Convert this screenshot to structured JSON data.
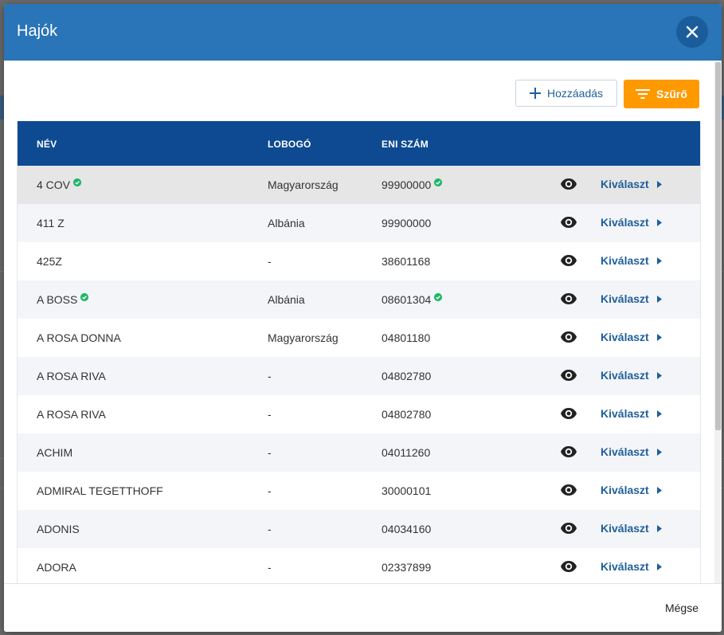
{
  "dialog": {
    "title": "Hajók",
    "close_icon": "close-icon"
  },
  "toolbar": {
    "add_label": "Hozzáadás",
    "add_icon": "plus-icon",
    "filter_label": "Szűrő",
    "filter_icon": "filter-icon",
    "filter_color": "#ff9900"
  },
  "table": {
    "header_color": "#0e4a91",
    "columns": [
      "NÉV",
      "LOBOGÓ",
      "ENI SZÁM"
    ],
    "rows": [
      {
        "name": "4 COV",
        "name_verified": true,
        "flag": "Magyarország",
        "eni": "99900000",
        "eni_verified": true,
        "action": "Kiválaszt",
        "selected": true
      },
      {
        "name": "411 Z",
        "name_verified": false,
        "flag": "Albánia",
        "eni": "99900000",
        "eni_verified": false,
        "action": "Kiválaszt"
      },
      {
        "name": "425Z",
        "name_verified": false,
        "flag": "-",
        "eni": "38601168",
        "eni_verified": false,
        "action": "Kiválaszt"
      },
      {
        "name": "A BOSS",
        "name_verified": true,
        "flag": "Albánia",
        "eni": "08601304",
        "eni_verified": true,
        "action": "Kiválaszt"
      },
      {
        "name": "A ROSA DONNA",
        "name_verified": false,
        "flag": "Magyarország",
        "eni": "04801180",
        "eni_verified": false,
        "action": "Kiválaszt"
      },
      {
        "name": "A ROSA RIVA",
        "name_verified": false,
        "flag": "-",
        "eni": "04802780",
        "eni_verified": false,
        "action": "Kiválaszt"
      },
      {
        "name": "A ROSA RIVA",
        "name_verified": false,
        "flag": "-",
        "eni": "04802780",
        "eni_verified": false,
        "action": "Kiválaszt"
      },
      {
        "name": "ACHIM",
        "name_verified": false,
        "flag": "-",
        "eni": "04011260",
        "eni_verified": false,
        "action": "Kiválaszt"
      },
      {
        "name": "ADMIRAL TEGETTHOFF",
        "name_verified": false,
        "flag": "-",
        "eni": "30000101",
        "eni_verified": false,
        "action": "Kiválaszt"
      },
      {
        "name": "ADONIS",
        "name_verified": false,
        "flag": "-",
        "eni": "04034160",
        "eni_verified": false,
        "action": "Kiválaszt"
      },
      {
        "name": "ADORA",
        "name_verified": false,
        "flag": "-",
        "eni": "02337899",
        "eni_verified": false,
        "action": "Kiválaszt"
      }
    ],
    "view_icon": "eye-icon",
    "select_icon": "caret-right-icon",
    "verified_icon": "check-circle-icon",
    "verified_color": "#1fb768",
    "link_color": "#1f5f9c"
  },
  "footer": {
    "cancel_label": "Mégse"
  }
}
